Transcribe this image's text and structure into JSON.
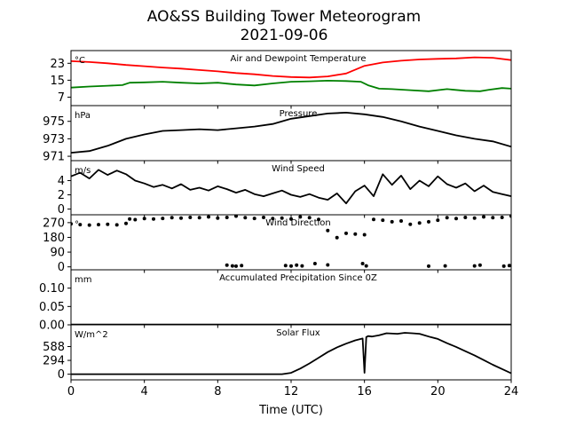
{
  "figure": {
    "title_line1": "AO&SS Building Tower Meteorogram",
    "title_line2": "2021-09-06",
    "xlabel": "Time (UTC)",
    "x_ticks": [
      0,
      4,
      8,
      12,
      16,
      20,
      24
    ],
    "x_tick_labels": [
      "0",
      "4",
      "8",
      "12",
      "16",
      "20",
      "24"
    ],
    "xlim": [
      0,
      24
    ]
  },
  "chart_data": [
    {
      "type": "line",
      "title": "Air and Dewpoint Temperature",
      "unit": "°C",
      "ylim": [
        3,
        29
      ],
      "y_ticks": [
        7,
        15,
        23
      ],
      "y_tick_labels": [
        "7",
        "15",
        "23"
      ],
      "series": [
        {
          "color": "#ff0000",
          "x": [
            0,
            1,
            2,
            3,
            4,
            5,
            6,
            7,
            8,
            9,
            10,
            11,
            12,
            13,
            14,
            15,
            16,
            17,
            18,
            19,
            20,
            21,
            22,
            23,
            24
          ],
          "y": [
            24.0,
            23.6,
            23.0,
            22.2,
            21.6,
            21.0,
            20.5,
            19.8,
            19.2,
            18.4,
            17.8,
            17.0,
            16.5,
            16.3,
            16.8,
            18.2,
            21.8,
            23.4,
            24.2,
            24.8,
            25.1,
            25.3,
            25.8,
            25.6,
            24.5
          ]
        },
        {
          "color": "#008000",
          "x": [
            0,
            1,
            2,
            2.8,
            3.2,
            4,
            5,
            6,
            7,
            8,
            9,
            10,
            11,
            12,
            13,
            14,
            15,
            15.8,
            16.2,
            16.8,
            17.5,
            18.5,
            19.5,
            20.5,
            21.5,
            22.3,
            22.8,
            23.5,
            24
          ],
          "y": [
            11.5,
            12.0,
            12.4,
            12.7,
            13.8,
            14.0,
            14.3,
            13.8,
            13.5,
            13.8,
            13.0,
            12.5,
            13.5,
            14.3,
            14.5,
            14.8,
            14.6,
            14.3,
            12.6,
            11.0,
            10.8,
            10.3,
            9.8,
            10.8,
            10.0,
            9.8,
            10.5,
            11.3,
            11.0
          ]
        }
      ]
    },
    {
      "type": "line",
      "title": "Pressure",
      "unit": "hPa",
      "ylim": [
        970.5,
        976.8
      ],
      "y_ticks": [
        971,
        973,
        975
      ],
      "y_tick_labels": [
        "971",
        "973",
        "975"
      ],
      "series": [
        {
          "color": "#000000",
          "x": [
            0,
            1,
            2,
            3,
            4,
            5,
            6,
            7,
            8,
            9,
            10,
            11,
            12,
            13,
            14,
            15,
            16,
            17,
            18,
            19,
            20,
            21,
            22,
            23,
            24
          ],
          "y": [
            971.4,
            971.6,
            972.2,
            973.0,
            973.5,
            973.9,
            974.0,
            974.1,
            974.0,
            974.2,
            974.4,
            974.7,
            975.3,
            975.6,
            975.9,
            976.0,
            975.8,
            975.5,
            975.0,
            974.4,
            973.9,
            973.4,
            973.0,
            972.7,
            972.1
          ]
        }
      ]
    },
    {
      "type": "line",
      "title": "Wind Speed",
      "unit": "m/s",
      "ylim": [
        -0.8,
        6.8
      ],
      "y_ticks": [
        0,
        2,
        4
      ],
      "y_tick_labels": [
        "0",
        "2",
        "4"
      ],
      "series": [
        {
          "color": "#000000",
          "x": [
            0,
            0.5,
            1,
            1.5,
            2,
            2.5,
            3,
            3.5,
            4,
            4.5,
            5,
            5.5,
            6,
            6.5,
            7,
            7.5,
            8,
            8.5,
            9,
            9.5,
            10,
            10.5,
            11,
            11.5,
            12,
            12.5,
            13,
            13.5,
            14,
            14.5,
            15,
            15.5,
            16,
            16.5,
            17,
            17.5,
            18,
            18.5,
            19,
            19.5,
            20,
            20.5,
            21,
            21.5,
            22,
            22.5,
            23,
            23.5,
            24
          ],
          "y": [
            4.6,
            5.1,
            4.3,
            5.5,
            4.8,
            5.4,
            4.9,
            4.0,
            3.6,
            3.1,
            3.4,
            2.9,
            3.5,
            2.7,
            3.0,
            2.6,
            3.2,
            2.8,
            2.3,
            2.7,
            2.1,
            1.8,
            2.2,
            2.6,
            2.0,
            1.7,
            2.1,
            1.6,
            1.3,
            2.2,
            0.8,
            2.5,
            3.3,
            1.8,
            4.9,
            3.4,
            4.7,
            2.8,
            4.0,
            3.2,
            4.6,
            3.5,
            3.0,
            3.6,
            2.5,
            3.3,
            2.4,
            2.1,
            1.8
          ]
        }
      ]
    },
    {
      "type": "scatter",
      "title": "Wind Direction",
      "unit": "°",
      "ylim": [
        -18,
        318
      ],
      "y_ticks": [
        0,
        90,
        180,
        270
      ],
      "y_tick_labels": [
        "0",
        "90",
        "180",
        "270"
      ],
      "series": [
        {
          "color": "#000000",
          "x": [
            0,
            0.5,
            1,
            1.5,
            2,
            2.5,
            3,
            3.2,
            3.5,
            4,
            4.5,
            5,
            5.5,
            6,
            6.5,
            7,
            7.5,
            8,
            8.5,
            9,
            9.5,
            10,
            10.5,
            11,
            11.5,
            12,
            12.5,
            13,
            13.5,
            14,
            14.5,
            15,
            15.5,
            16,
            16.5,
            17,
            17.5,
            18,
            18.5,
            19,
            19.5,
            20,
            20.5,
            21,
            21.5,
            22,
            22.5,
            23,
            23.5,
            24
          ],
          "y": [
            262,
            258,
            255,
            258,
            260,
            256,
            265,
            292,
            288,
            295,
            292,
            296,
            300,
            298,
            302,
            300,
            305,
            298,
            302,
            310,
            300,
            296,
            302,
            295,
            298,
            292,
            305,
            300,
            290,
            222,
            178,
            205,
            200,
            196,
            290,
            285,
            275,
            280,
            260,
            268,
            275,
            285,
            300,
            295,
            302,
            298,
            305,
            300,
            302,
            310
          ]
        },
        {
          "color": "#000000",
          "x": [
            8.5,
            8.8,
            9.0,
            9.3,
            11.7,
            12.0,
            12.3,
            12.6,
            13.3,
            14.0,
            15.9,
            16.1,
            19.5,
            20.4,
            22.0,
            22.3,
            23.6,
            23.9
          ],
          "y": [
            10,
            6,
            4,
            8,
            8,
            5,
            10,
            6,
            20,
            12,
            20,
            6,
            4,
            6,
            6,
            10,
            4,
            8
          ]
        }
      ]
    },
    {
      "type": "line",
      "title": "Accumulated Precipitation Since 0Z",
      "unit": "mm",
      "ylim": [
        0,
        0.15
      ],
      "y_ticks": [
        0.0,
        0.05,
        0.1
      ],
      "y_tick_labels": [
        "0.00",
        "0.05",
        "0.10"
      ],
      "series": [
        {
          "color": "#000000",
          "x": [
            0,
            24
          ],
          "y": [
            0,
            0
          ]
        }
      ]
    },
    {
      "type": "line",
      "title": "Solar Flux",
      "unit": "W/m^2",
      "ylim": [
        -120,
        1050
      ],
      "y_ticks": [
        0,
        294,
        588
      ],
      "y_tick_labels": [
        "0",
        "294",
        "588"
      ],
      "series": [
        {
          "color": "#000000",
          "x": [
            0,
            4,
            8,
            11.5,
            12,
            12.5,
            13,
            13.5,
            14,
            14.5,
            15,
            15.5,
            15.9,
            16.0,
            16.1,
            16.2,
            16.4,
            16.8,
            17.2,
            17.8,
            18.2,
            18.6,
            19.0,
            19.6,
            20,
            20.5,
            21,
            21.5,
            22,
            22.5,
            23,
            23.5,
            24
          ],
          "y": [
            0,
            0,
            0,
            0,
            30,
            120,
            230,
            350,
            470,
            570,
            650,
            720,
            760,
            30,
            790,
            810,
            800,
            830,
            870,
            860,
            880,
            870,
            860,
            790,
            750,
            660,
            580,
            490,
            400,
            300,
            200,
            110,
            20
          ]
        }
      ]
    }
  ]
}
